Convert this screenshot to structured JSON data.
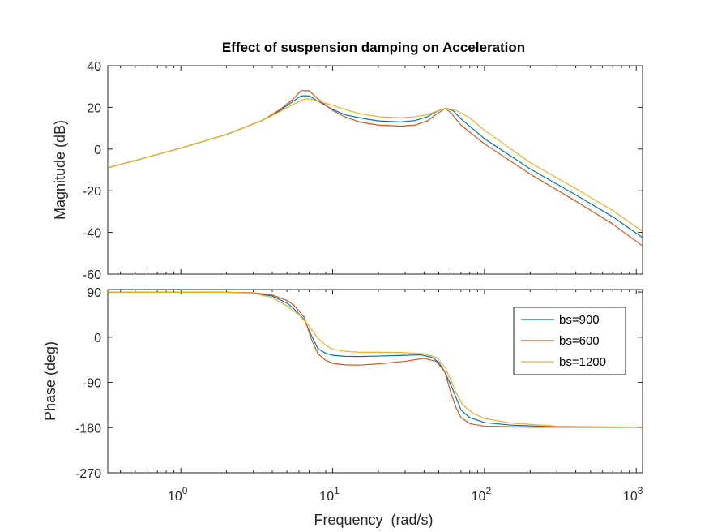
{
  "chart_data": {
    "type": "line",
    "title": "Effect of suspension damping on Acceleration",
    "xlabel": "Frequency  (rad/s)",
    "x_scale": "log",
    "xlim": [
      0.33,
      1100
    ],
    "x_ticks": [
      {
        "value": 1,
        "base": "10",
        "exp": "0"
      },
      {
        "value": 10,
        "base": "10",
        "exp": "1"
      },
      {
        "value": 100,
        "base": "10",
        "exp": "2"
      },
      {
        "value": 1000,
        "base": "10",
        "exp": "3"
      }
    ],
    "legend": {
      "placement": "right-middle",
      "entries": [
        "bs=900",
        "bs=600",
        "bs=1200"
      ]
    },
    "grid": false,
    "subplots": [
      {
        "ylabel": "Magnitude (dB)",
        "ylim": [
          -60,
          40
        ],
        "y_ticks": [
          "40",
          "20",
          "0",
          "-20",
          "-40",
          "-60"
        ],
        "series": [
          {
            "name": "bs=900",
            "color": "#0072BD",
            "points": [
              [
                0.33,
                -9
              ],
              [
                0.5,
                -5.5
              ],
              [
                1,
                0.5
              ],
              [
                2,
                7
              ],
              [
                3.5,
                14
              ],
              [
                4.5,
                18.5
              ],
              [
                5.5,
                23
              ],
              [
                6.2,
                25.5
              ],
              [
                7,
                25.5
              ],
              [
                8,
                23
              ],
              [
                10,
                19
              ],
              [
                12,
                16.5
              ],
              [
                15,
                15
              ],
              [
                20,
                13.5
              ],
              [
                28,
                13
              ],
              [
                35,
                13.7
              ],
              [
                42,
                15.5
              ],
              [
                50,
                18.5
              ],
              [
                56,
                19.5
              ],
              [
                62,
                18.5
              ],
              [
                70,
                14.5
              ],
              [
                100,
                5
              ],
              [
                200,
                -9.5
              ],
              [
                400,
                -22
              ],
              [
                700,
                -32.5
              ],
              [
                1100,
                -42.5
              ]
            ]
          },
          {
            "name": "bs=600",
            "color": "#D95319",
            "points": [
              [
                0.33,
                -9
              ],
              [
                0.5,
                -5.5
              ],
              [
                1,
                0.5
              ],
              [
                2,
                7
              ],
              [
                3.5,
                14
              ],
              [
                4.5,
                19
              ],
              [
                5.5,
                24
              ],
              [
                6.2,
                28
              ],
              [
                7,
                28
              ],
              [
                8,
                24
              ],
              [
                10,
                18.5
              ],
              [
                12,
                15.5
              ],
              [
                15,
                13
              ],
              [
                20,
                11.5
              ],
              [
                28,
                11
              ],
              [
                35,
                11.5
              ],
              [
                42,
                13.5
              ],
              [
                50,
                17.5
              ],
              [
                55,
                19.5
              ],
              [
                60,
                17.5
              ],
              [
                70,
                11.5
              ],
              [
                100,
                2.5
              ],
              [
                200,
                -12
              ],
              [
                400,
                -25
              ],
              [
                700,
                -36
              ],
              [
                1100,
                -46.5
              ]
            ]
          },
          {
            "name": "bs=1200",
            "color": "#EDB120",
            "points": [
              [
                0.33,
                -9
              ],
              [
                0.5,
                -5.5
              ],
              [
                1,
                0.5
              ],
              [
                2,
                7
              ],
              [
                3.5,
                14
              ],
              [
                4.5,
                18
              ],
              [
                5.5,
                21.5
              ],
              [
                6.5,
                24
              ],
              [
                7.2,
                24
              ],
              [
                8.5,
                22.5
              ],
              [
                10,
                21
              ],
              [
                12,
                19
              ],
              [
                15,
                17
              ],
              [
                20,
                15.5
              ],
              [
                28,
                15
              ],
              [
                35,
                15.5
              ],
              [
                42,
                16.5
              ],
              [
                50,
                18.5
              ],
              [
                57,
                19.5
              ],
              [
                65,
                18.5
              ],
              [
                80,
                15
              ],
              [
                100,
                9
              ],
              [
                200,
                -6.5
              ],
              [
                400,
                -19
              ],
              [
                700,
                -29.5
              ],
              [
                1100,
                -39.5
              ]
            ]
          }
        ]
      },
      {
        "ylabel": "Phase (deg)",
        "ylim": [
          -270,
          95
        ],
        "y_ticks": [
          "90",
          "0",
          "-90",
          "-180",
          "-270"
        ],
        "series": [
          {
            "name": "bs=900",
            "color": "#0072BD",
            "points": [
              [
                0.33,
                90
              ],
              [
                1,
                90
              ],
              [
                2,
                89.5
              ],
              [
                3,
                88
              ],
              [
                4,
                82
              ],
              [
                5,
                68
              ],
              [
                5.5,
                58
              ],
              [
                6.5,
                35
              ],
              [
                7.2,
                5
              ],
              [
                8,
                -23
              ],
              [
                9,
                -32
              ],
              [
                10,
                -36
              ],
              [
                12,
                -38
              ],
              [
                15,
                -38.5
              ],
              [
                20,
                -37.5
              ],
              [
                30,
                -36
              ],
              [
                38,
                -35
              ],
              [
                45,
                -40
              ],
              [
                50,
                -50
              ],
              [
                55,
                -70
              ],
              [
                60,
                -95
              ],
              [
                65,
                -120
              ],
              [
                70,
                -145
              ],
              [
                80,
                -160
              ],
              [
                100,
                -170
              ],
              [
                150,
                -175
              ],
              [
                300,
                -178.5
              ],
              [
                1100,
                -179.5
              ]
            ]
          },
          {
            "name": "bs=600",
            "color": "#D95319",
            "points": [
              [
                0.33,
                90
              ],
              [
                1,
                90
              ],
              [
                2,
                89.5
              ],
              [
                3,
                88.5
              ],
              [
                4,
                84
              ],
              [
                5,
                73
              ],
              [
                5.5,
                65
              ],
              [
                6.5,
                40
              ],
              [
                7.2,
                -2
              ],
              [
                8,
                -33
              ],
              [
                9,
                -46
              ],
              [
                10,
                -52
              ],
              [
                12,
                -55
              ],
              [
                15,
                -55.5
              ],
              [
                20,
                -53
              ],
              [
                30,
                -48
              ],
              [
                40,
                -42
              ],
              [
                48,
                -48
              ],
              [
                55,
                -70
              ],
              [
                60,
                -110
              ],
              [
                65,
                -140
              ],
              [
                70,
                -160
              ],
              [
                80,
                -172
              ],
              [
                100,
                -177
              ],
              [
                200,
                -179
              ],
              [
                1100,
                -179.5
              ]
            ]
          },
          {
            "name": "bs=1200",
            "color": "#EDB120",
            "points": [
              [
                0.33,
                90
              ],
              [
                1,
                90
              ],
              [
                2,
                89.5
              ],
              [
                3,
                87.5
              ],
              [
                4,
                79
              ],
              [
                5,
                62
              ],
              [
                6,
                45
              ],
              [
                7,
                22
              ],
              [
                8,
                -2
              ],
              [
                9,
                -16
              ],
              [
                10,
                -24
              ],
              [
                12,
                -28
              ],
              [
                15,
                -30
              ],
              [
                20,
                -30
              ],
              [
                30,
                -30.5
              ],
              [
                40,
                -33
              ],
              [
                48,
                -40
              ],
              [
                55,
                -60
              ],
              [
                60,
                -85
              ],
              [
                65,
                -110
              ],
              [
                72,
                -135
              ],
              [
                85,
                -152
              ],
              [
                100,
                -162
              ],
              [
                150,
                -171
              ],
              [
                300,
                -177
              ],
              [
                1100,
                -179.5
              ]
            ]
          }
        ]
      }
    ]
  }
}
